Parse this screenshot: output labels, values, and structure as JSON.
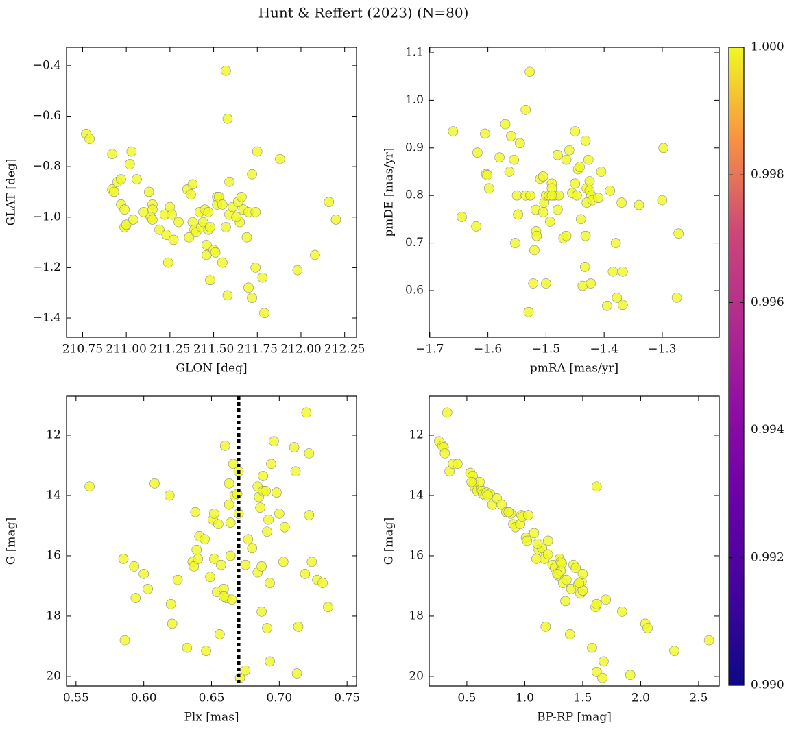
{
  "title": "Hunt & Reffert (2023) (N=80)",
  "colorbar": {
    "cmap": "plasma",
    "clim": [
      0.99,
      1.0
    ],
    "ticks": [
      {
        "value": 0.99,
        "label": "0.990"
      },
      {
        "value": 0.992,
        "label": "0.992"
      },
      {
        "value": 0.994,
        "label": "0.994"
      },
      {
        "value": 0.996,
        "label": "0.996"
      },
      {
        "value": 0.998,
        "label": "0.998"
      },
      {
        "value": 1.0,
        "label": "1.000"
      }
    ]
  },
  "chart_data": [
    {
      "type": "scatter",
      "xlabel": "GLON [deg]",
      "ylabel": "GLAT [deg]",
      "color": "#f0f921",
      "xlim": [
        210.658,
        212.318
      ],
      "ylim": [
        -1.476,
        -0.327
      ],
      "xticks": [
        210.75,
        {
          "value": 211,
          "label": "211.00"
        },
        211.25,
        {
          "value": 211.5,
          "label": "211.50"
        },
        211.75,
        {
          "value": 212,
          "label": "212.00"
        },
        212.25
      ],
      "yticks": [
        {
          "value": -0.4,
          "label": "−0.4"
        },
        {
          "value": -0.6,
          "label": "−0.6"
        },
        {
          "value": -0.8,
          "label": "−0.8"
        },
        {
          "value": -1,
          "label": "−1.0"
        },
        {
          "value": -1.2,
          "label": "−1.2"
        },
        {
          "value": -1.4,
          "label": "−1.4"
        }
      ],
      "x": [
        210.77,
        210.79,
        210.92,
        210.92,
        210.93,
        210.95,
        210.97,
        210.97,
        210.99,
        210.99,
        211.0,
        211.02,
        211.03,
        211.04,
        211.06,
        211.1,
        211.13,
        211.15,
        211.15,
        211.14,
        211.15,
        211.19,
        211.22,
        211.23,
        211.24,
        211.25,
        211.26,
        211.27,
        211.3,
        211.35,
        211.36,
        211.37,
        211.38,
        211.38,
        211.39,
        211.4,
        211.42,
        211.43,
        211.44,
        211.45,
        211.46,
        211.46,
        211.47,
        211.47,
        211.48,
        211.48,
        211.5,
        211.51,
        211.52,
        211.52,
        211.53,
        211.55,
        211.55,
        211.57,
        211.57,
        211.58,
        211.58,
        211.59,
        211.59,
        211.61,
        211.64,
        211.65,
        211.66,
        211.67,
        211.69,
        211.7,
        211.7,
        211.72,
        211.72,
        211.74,
        211.74,
        211.75,
        211.78,
        211.79,
        211.88,
        211.98,
        212.08,
        212.16,
        212.2,
        211.63
      ],
      "y": [
        -0.67,
        -0.69,
        -0.75,
        -0.89,
        -0.9,
        -0.86,
        -0.85,
        -0.95,
        -0.97,
        -1.04,
        -1.03,
        -0.79,
        -0.74,
        -1.01,
        -0.85,
        -0.98,
        -0.9,
        -0.95,
        -0.97,
        -1.0,
        -1.01,
        -1.05,
        -0.99,
        -1.07,
        -1.18,
        -0.96,
        -0.99,
        -1.09,
        -1.02,
        -0.89,
        -1.08,
        -0.91,
        -0.87,
        -1.02,
        -1.05,
        -1.06,
        -0.98,
        -1.04,
        -1.02,
        -0.97,
        -1.11,
        -1.15,
        -1.05,
        -0.98,
        -1.04,
        -1.25,
        -1.13,
        -1.14,
        -0.92,
        -0.95,
        -0.92,
        -0.95,
        -1.18,
        -1.04,
        -0.42,
        -0.61,
        -1.31,
        -0.86,
        -0.99,
        -0.96,
        -0.94,
        -1.02,
        -0.92,
        -0.97,
        -1.08,
        -1.28,
        -0.98,
        -1.32,
        -0.83,
        -0.98,
        -1.2,
        -0.74,
        -1.24,
        -1.38,
        -0.77,
        -1.21,
        -1.15,
        -0.94,
        -1.01,
        -1.0
      ]
    },
    {
      "type": "scatter",
      "xlabel": "pmRA [mas/yr]",
      "ylabel": "pmDE [mas/yr]",
      "color": "#f0f921",
      "xlim": [
        -1.701,
        -1.202
      ],
      "ylim": [
        0.502,
        1.1115
      ],
      "xticks": [
        {
          "value": -1.7,
          "label": "−1.7"
        },
        {
          "value": -1.6,
          "label": "−1.6"
        },
        {
          "value": -1.5,
          "label": "−1.5"
        },
        {
          "value": -1.4,
          "label": "−1.4"
        },
        {
          "value": -1.3,
          "label": "−1.3"
        }
      ],
      "yticks": [
        0.6,
        0.7,
        0.8,
        0.9,
        {
          "value": 1,
          "label": "1.0"
        },
        1.1
      ],
      "x": [
        -1.66,
        -1.645,
        -1.62,
        -1.618,
        -1.605,
        -1.603,
        -1.601,
        -1.598,
        -1.58,
        -1.57,
        -1.563,
        -1.56,
        -1.555,
        -1.553,
        -1.55,
        -1.548,
        -1.545,
        -1.535,
        -1.535,
        -1.53,
        -1.528,
        -1.527,
        -1.522,
        -1.52,
        -1.518,
        -1.517,
        -1.516,
        -1.51,
        -1.505,
        -1.505,
        -1.503,
        -1.5,
        -1.5,
        -1.495,
        -1.493,
        -1.49,
        -1.49,
        -1.485,
        -1.48,
        -1.48,
        -1.478,
        -1.47,
        -1.465,
        -1.465,
        -1.46,
        -1.455,
        -1.45,
        -1.45,
        -1.447,
        -1.445,
        -1.442,
        -1.44,
        -1.437,
        -1.433,
        -1.432,
        -1.432,
        -1.43,
        -1.43,
        -1.427,
        -1.425,
        -1.425,
        -1.423,
        -1.422,
        -1.42,
        -1.41,
        -1.405,
        -1.39,
        -1.385,
        -1.38,
        -1.378,
        -1.37,
        -1.368,
        -1.368,
        -1.34,
        -1.3,
        -1.298,
        -1.275,
        -1.272,
        -1.395,
        -1.49
      ],
      "y": [
        0.935,
        0.755,
        0.735,
        0.89,
        0.93,
        0.845,
        0.843,
        0.815,
        0.88,
        0.95,
        0.85,
        0.925,
        0.875,
        0.7,
        0.8,
        0.76,
        0.91,
        0.8,
        0.98,
        0.555,
        1.06,
        0.8,
        0.615,
        0.685,
        0.77,
        0.725,
        0.715,
        0.835,
        0.84,
        0.765,
        0.785,
        0.615,
        0.8,
        0.8,
        0.745,
        0.825,
        0.815,
        0.8,
        0.885,
        0.77,
        0.8,
        0.71,
        0.715,
        0.875,
        0.895,
        0.805,
        0.935,
        0.825,
        0.8,
        0.855,
        0.86,
        0.75,
        0.61,
        0.65,
        0.715,
        0.915,
        0.815,
        0.785,
        0.875,
        0.83,
        0.81,
        0.615,
        0.8,
        0.79,
        0.795,
        0.85,
        0.81,
        0.64,
        0.7,
        0.585,
        0.785,
        0.64,
        0.57,
        0.78,
        0.79,
        0.9,
        0.585,
        0.72,
        0.568,
        0.8
      ]
    },
    {
      "type": "scatter",
      "xlabel": "Plx [mas]",
      "ylabel": "G [mag]",
      "color": "#f0f921",
      "xlim": [
        0.543,
        0.757
      ],
      "ylim": [
        20.32,
        10.705
      ],
      "vline": 0.67,
      "xticks": [
        0.55,
        {
          "value": 0.6,
          "label": "0.60"
        },
        0.65,
        {
          "value": 0.7,
          "label": "0.70"
        },
        0.75
      ],
      "yticks": [
        12,
        14,
        16,
        18,
        20
      ],
      "x": [
        0.56,
        0.585,
        0.586,
        0.593,
        0.594,
        0.6,
        0.603,
        0.608,
        0.619,
        0.62,
        0.621,
        0.625,
        0.632,
        0.636,
        0.637,
        0.638,
        0.639,
        0.64,
        0.641,
        0.645,
        0.646,
        0.649,
        0.651,
        0.652,
        0.652,
        0.654,
        0.655,
        0.656,
        0.657,
        0.659,
        0.66,
        0.661,
        0.663,
        0.663,
        0.664,
        0.664,
        0.665,
        0.666,
        0.667,
        0.669,
        0.67,
        0.67,
        0.671,
        0.675,
        0.675,
        0.677,
        0.68,
        0.684,
        0.684,
        0.685,
        0.687,
        0.687,
        0.688,
        0.688,
        0.69,
        0.691,
        0.691,
        0.692,
        0.693,
        0.693,
        0.694,
        0.696,
        0.698,
        0.7,
        0.703,
        0.704,
        0.711,
        0.712,
        0.713,
        0.714,
        0.719,
        0.72,
        0.722,
        0.722,
        0.724,
        0.728,
        0.732,
        0.736,
        0.686,
        0.659
      ],
      "y": [
        13.7,
        16.1,
        18.8,
        16.35,
        17.4,
        16.6,
        17.1,
        13.6,
        14.0,
        17.6,
        18.25,
        16.8,
        19.05,
        16.2,
        16.35,
        14.55,
        15.8,
        16.1,
        15.35,
        15.45,
        19.15,
        16.7,
        14.8,
        14.6,
        16.1,
        17.2,
        14.95,
        18.6,
        16.3,
        17.1,
        12.35,
        17.4,
        13.6,
        14.3,
        16.0,
        14.9,
        17.45,
        12.95,
        14.0,
        13.95,
        13.2,
        14.6,
        20.05,
        16.3,
        19.8,
        15.45,
        15.75,
        16.55,
        13.7,
        14.05,
        17.85,
        16.35,
        13.35,
        13.85,
        13.85,
        15.2,
        18.4,
        14.8,
        16.9,
        19.5,
        12.95,
        12.2,
        13.9,
        14.6,
        16.2,
        15.05,
        12.4,
        13.2,
        19.9,
        18.35,
        16.6,
        11.25,
        12.6,
        14.65,
        16.2,
        16.8,
        16.9,
        17.7,
        14.4,
        17.35
      ]
    },
    {
      "type": "scatter",
      "xlabel": "BP-RP [mag]",
      "ylabel": "G [mag]",
      "color": "#f0f921",
      "xlim": [
        0.175,
        2.678
      ],
      "ylim": [
        20.32,
        10.705
      ],
      "xticks": [
        0.5,
        {
          "value": 1,
          "label": "1.0"
        },
        1.5,
        {
          "value": 2,
          "label": "2.0"
        },
        2.5
      ],
      "yticks": [
        12,
        14,
        16,
        18,
        20
      ],
      "x": [
        0.26,
        0.29,
        0.3,
        0.31,
        0.33,
        0.35,
        0.38,
        0.42,
        0.53,
        0.55,
        0.56,
        0.57,
        0.59,
        0.61,
        0.62,
        0.63,
        0.64,
        0.66,
        0.67,
        0.7,
        0.72,
        0.76,
        0.8,
        0.84,
        0.88,
        0.9,
        0.92,
        0.96,
        0.97,
        0.98,
        1.01,
        1.02,
        1.03,
        1.08,
        1.1,
        1.12,
        1.15,
        1.17,
        1.18,
        1.2,
        1.2,
        1.24,
        1.26,
        1.29,
        1.3,
        1.31,
        1.31,
        1.32,
        1.33,
        1.35,
        1.36,
        1.39,
        1.4,
        1.42,
        1.44,
        1.46,
        1.48,
        1.49,
        1.5,
        1.5,
        1.58,
        1.61,
        1.62,
        1.62,
        1.62,
        1.67,
        1.68,
        1.7,
        1.84,
        1.91,
        2.04,
        2.06,
        2.29,
        2.59,
        1.28,
        0.54,
        0.68,
        1.11,
        1.47,
        0.86
      ],
      "y": [
        12.2,
        12.35,
        12.4,
        12.6,
        11.25,
        13.2,
        12.95,
        12.95,
        13.25,
        13.35,
        13.6,
        13.75,
        13.85,
        13.55,
        13.8,
        13.85,
        13.95,
        14.0,
        13.9,
        13.95,
        14.3,
        14.1,
        14.3,
        14.55,
        14.6,
        14.95,
        15.05,
        14.95,
        14.65,
        14.7,
        15.4,
        15.5,
        14.65,
        15.25,
        16.1,
        15.8,
        15.75,
        16.1,
        18.35,
        15.5,
        15.95,
        16.3,
        16.4,
        16.65,
        16.1,
        16.2,
        16.5,
        16.25,
        16.9,
        17.5,
        16.8,
        18.6,
        17.1,
        16.3,
        16.4,
        16.95,
        17.25,
        16.85,
        16.6,
        17.15,
        19.05,
        17.7,
        17.6,
        13.7,
        19.85,
        20.05,
        19.5,
        17.45,
        17.85,
        19.95,
        18.25,
        18.4,
        19.15,
        18.8,
        16.6,
        13.55,
        14.0,
        15.6,
        16.9,
        14.55
      ]
    }
  ]
}
